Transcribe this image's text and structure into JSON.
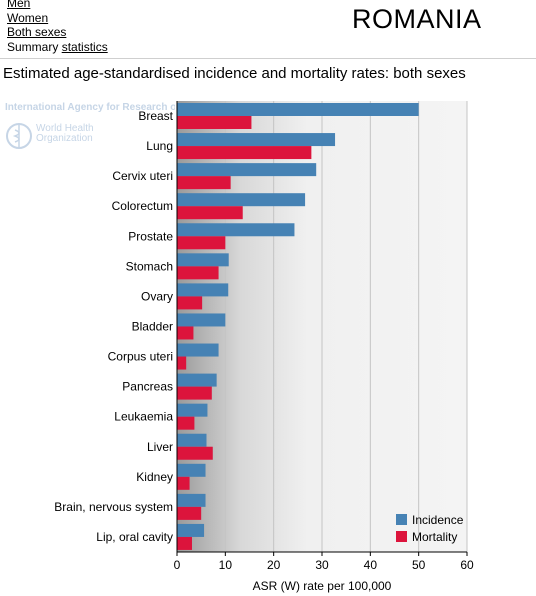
{
  "nav": {
    "men_label": "Men",
    "women_label": "Women",
    "both_label": "Both sexes",
    "summary_prefix": "Summary",
    "summary_link": "statistics"
  },
  "country": "ROMANIA",
  "subtitle": "Estimated age-standardised incidence and mortality rates: both sexes",
  "watermark": {
    "line1": "International Agency for Research on Cancer",
    "line2": "World Health",
    "line3": "Organization",
    "icon": "who-emblem-icon"
  },
  "chart_data": {
    "type": "bar",
    "orientation": "horizontal",
    "categories": [
      "Breast",
      "Lung",
      "Cervix uteri",
      "Colorectum",
      "Prostate",
      "Stomach",
      "Ovary",
      "Bladder",
      "Corpus uteri",
      "Pancreas",
      "Leukaemia",
      "Liver",
      "Kidney",
      "Brain, nervous system",
      "Lip, oral cavity"
    ],
    "series": [
      {
        "name": "Incidence",
        "color": "#4682b4",
        "values": [
          50.0,
          32.7,
          28.8,
          26.5,
          24.3,
          10.7,
          10.6,
          10.0,
          8.6,
          8.2,
          6.3,
          6.1,
          5.9,
          5.9,
          5.6
        ]
      },
      {
        "name": "Mortality",
        "color": "#dc143c",
        "values": [
          15.4,
          27.8,
          11.1,
          13.6,
          10.0,
          8.6,
          5.2,
          3.4,
          1.9,
          7.2,
          3.6,
          7.4,
          2.6,
          5.0,
          3.1
        ]
      }
    ],
    "xlabel": "ASR (W) rate per 100,000",
    "xlim": [
      0,
      60
    ],
    "xticks": [
      0,
      10,
      20,
      30,
      40,
      50,
      60
    ],
    "grid": "vertical",
    "legend": "bottom-right"
  }
}
